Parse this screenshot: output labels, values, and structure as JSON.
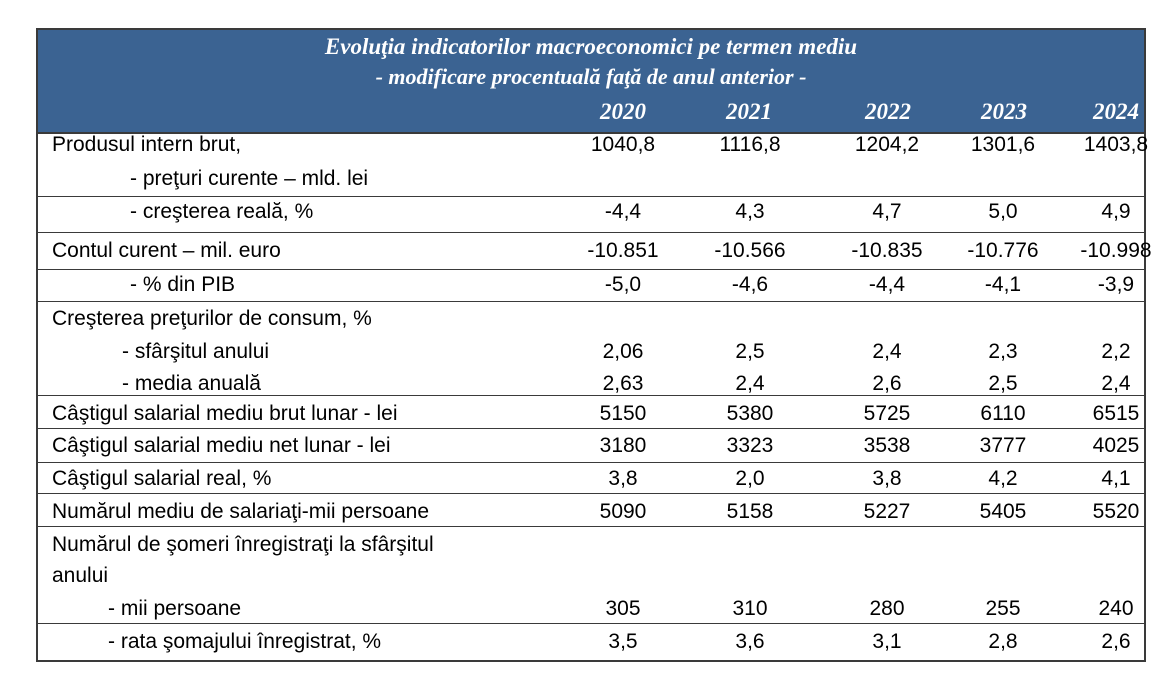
{
  "title": "Evoluţia indicatorilor macroeconomici pe termen mediu",
  "subtitle": "- modificare procentuală faţă de anul anterior -",
  "years": [
    "2020",
    "2021",
    "2022",
    "2023",
    "2024"
  ],
  "rows": [
    {
      "label": "Produsul intern brut,",
      "values": [
        "1040,8",
        "1116,8",
        "1204,2",
        "1301,6",
        "1403,8"
      ]
    },
    {
      "label": "- preţuri curente – mld. lei",
      "values": []
    },
    {
      "label": "- creşterea reală, %",
      "values": [
        "-4,4",
        "4,3",
        "4,7",
        "5,0",
        "4,9"
      ]
    },
    {
      "label": "Contul curent – mil. euro",
      "values": [
        "-10.851",
        "-10.566",
        "-10.835",
        "-10.776",
        "-10.998"
      ]
    },
    {
      "label": "- % din PIB",
      "values": [
        "-5,0",
        "-4,6",
        "-4,4",
        "-4,1",
        "-3,9"
      ]
    },
    {
      "label": "Creşterea preţurilor de consum, %",
      "values": []
    },
    {
      "label": "- sfârşitul anului",
      "values": [
        "2,06",
        "2,5",
        "2,4",
        "2,3",
        "2,2"
      ]
    },
    {
      "label": "- media anuală",
      "values": [
        "2,63",
        "2,4",
        "2,6",
        "2,5",
        "2,4"
      ]
    },
    {
      "label": "Câştigul salarial mediu brut lunar - lei",
      "values": [
        "5150",
        "5380",
        "5725",
        "6110",
        "6515"
      ]
    },
    {
      "label": "Câştigul salarial mediu net lunar - lei",
      "values": [
        "3180",
        "3323",
        "3538",
        "3777",
        "4025"
      ]
    },
    {
      "label": "Câştigul salarial real, %",
      "values": [
        "3,8",
        "2,0",
        "3,8",
        "4,2",
        "4,1"
      ]
    },
    {
      "label": "Numărul mediu de salariaţi-mii persoane",
      "values": [
        "5090",
        "5158",
        "5227",
        "5405",
        "5520"
      ]
    },
    {
      "label": "Numărul de şomeri înregistraţi la sfârşitul",
      "values": []
    },
    {
      "label": "anului",
      "values": []
    },
    {
      "label": "- mii persoane",
      "values": [
        "305",
        "310",
        "280",
        "255",
        "240"
      ]
    },
    {
      "label": "- rata şomajului înregistrat, %",
      "values": [
        "3,5",
        "3,6",
        "3,1",
        "2,8",
        "2,6"
      ]
    }
  ]
}
